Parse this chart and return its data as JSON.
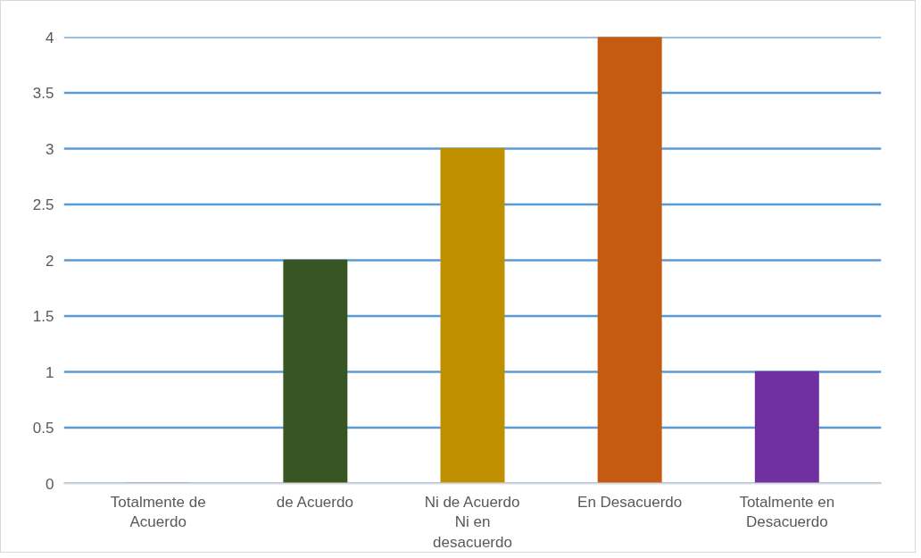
{
  "chart_data": {
    "type": "bar",
    "categories": [
      "Totalmente de Acuerdo",
      "de Acuerdo",
      "Ni de Acuerdo Ni en desacuerdo",
      "En Desacuerdo",
      "Totalmente en Desacuerdo"
    ],
    "values": [
      0,
      2,
      3,
      4,
      1
    ],
    "colors": [
      "#1b2a3e",
      "#375623",
      "#bf8f00",
      "#c55a11",
      "#7030a0"
    ],
    "ylim": [
      0,
      4
    ],
    "yticks": [
      0,
      0.5,
      1,
      1.5,
      2,
      2.5,
      3,
      3.5,
      4
    ],
    "grid": "y"
  }
}
